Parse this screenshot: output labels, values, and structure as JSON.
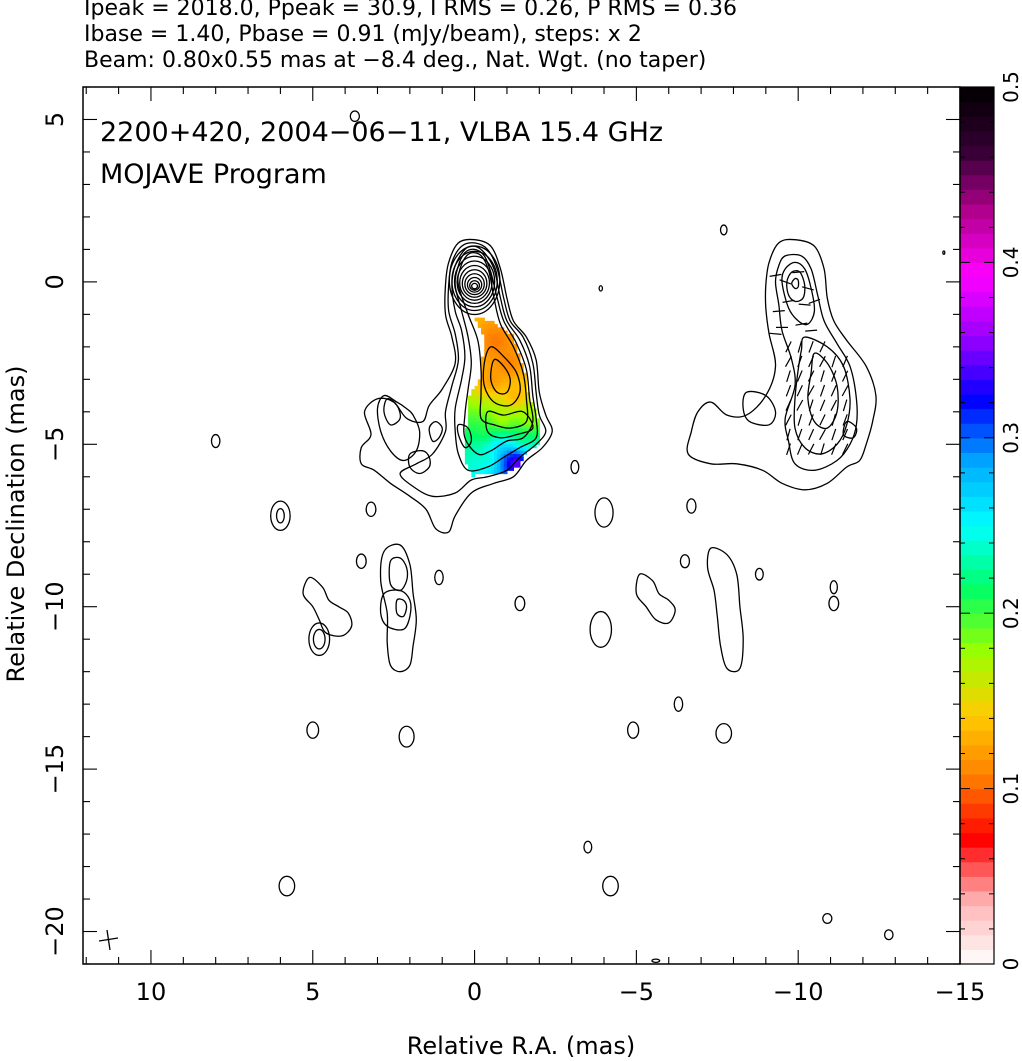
{
  "header": {
    "line1": "Ipeak = 2018.0, Ppeak = 30.9, I RMS = 0.26, P RMS = 0.36",
    "line2": "Ibase = 1.40, Pbase = 0.91 (mJy/beam), steps: x 2",
    "line3": "Beam: 0.80x0.55 mas at −8.4 deg., Nat. Wgt. (no taper)"
  },
  "panel": {
    "title_line1": "2200+420, 2004−06−11, VLBA 15.4 GHz",
    "title_line2": "MOJAVE Program"
  },
  "chart_data": {
    "type": "contour",
    "xlabel": "Relative R.A. (mas)",
    "ylabel": "Relative Declination (mas)",
    "xlim": [
      12.1,
      -15.0
    ],
    "ylim": [
      -21.0,
      6.0
    ],
    "x_ticks": [
      10,
      5,
      0,
      -5,
      -10,
      -15
    ],
    "x_tick_labels": [
      "10",
      "5",
      "0",
      "−5",
      "−10",
      "−15"
    ],
    "y_ticks": [
      5,
      0,
      -5,
      -10,
      -15,
      -20
    ],
    "y_tick_labels": [
      "5",
      "0",
      "−5",
      "−10",
      "−15",
      "−20"
    ],
    "colorbar": {
      "min": 0,
      "max": 0.5,
      "ticks": [
        0,
        0.1,
        0.2,
        0.3,
        0.4,
        0.5
      ],
      "tick_labels": [
        "0",
        "0.1",
        "0.2",
        "0.3",
        "0.4",
        "0.5"
      ],
      "colors": [
        "#ffffff",
        "#ffb3b3",
        "#ff0000",
        "#ff8000",
        "#ffcc00",
        "#99ff00",
        "#00ff66",
        "#00ffff",
        "#00aaff",
        "#0000ff",
        "#9900ff",
        "#ff00ff",
        "#b3008f",
        "#330033",
        "#000000"
      ]
    },
    "core_peak_mas": [
      0,
      0
    ],
    "beam": {
      "major": 0.8,
      "minor": 0.55,
      "pa_deg": -8.4
    },
    "fractional_polarization_patches": [
      {
        "x": -0.6,
        "y": -1.8,
        "value": 0.1
      },
      {
        "x": -1.0,
        "y": -2.5,
        "value": 0.1
      },
      {
        "x": -1.2,
        "y": -3.5,
        "value": 0.12
      },
      {
        "x": -0.5,
        "y": -3.0,
        "value": 0.11
      },
      {
        "x": -0.8,
        "y": -4.2,
        "value": 0.16
      },
      {
        "x": -1.6,
        "y": -4.2,
        "value": 0.17
      },
      {
        "x": -0.3,
        "y": -4.6,
        "value": 0.2
      },
      {
        "x": -0.7,
        "y": -5.0,
        "value": 0.27
      },
      {
        "x": -1.4,
        "y": -4.8,
        "value": 0.21
      },
      {
        "x": -0.4,
        "y": -5.4,
        "value": 0.23
      },
      {
        "x": -1.0,
        "y": -5.4,
        "value": 0.32
      },
      {
        "x": -1.2,
        "y": -5.5,
        "value": 0.4
      }
    ]
  }
}
